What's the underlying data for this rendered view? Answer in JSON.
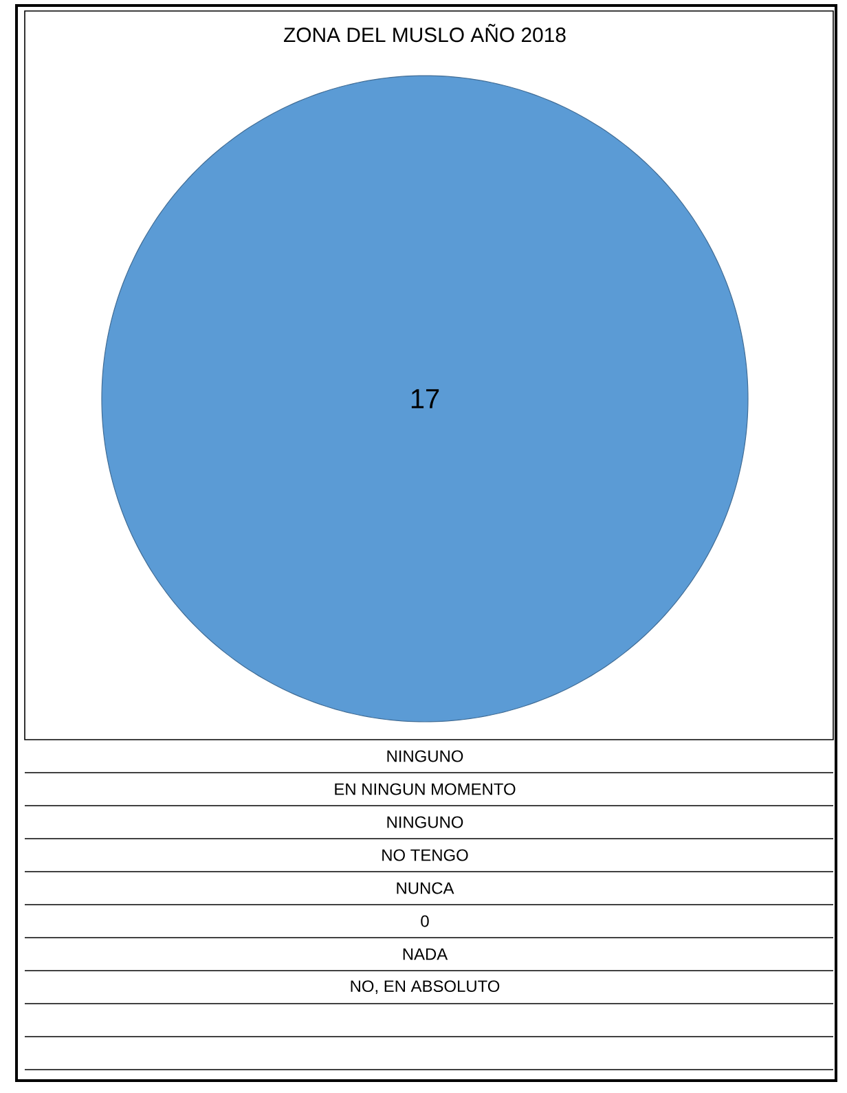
{
  "chart_data": {
    "type": "pie",
    "title": "ZONA DEL MUSLO AÑO 2018",
    "categories": [
      null
    ],
    "values": [
      17
    ],
    "colors": [
      "#5b9bd5"
    ],
    "data_labels": true,
    "annotations": [
      "NINGUNO",
      "EN NINGUN MOMENTO",
      "NINGUNO",
      "NO TENGO",
      "NUNCA",
      "0",
      "NADA",
      "NO, EN ABSOLUTO"
    ]
  }
}
